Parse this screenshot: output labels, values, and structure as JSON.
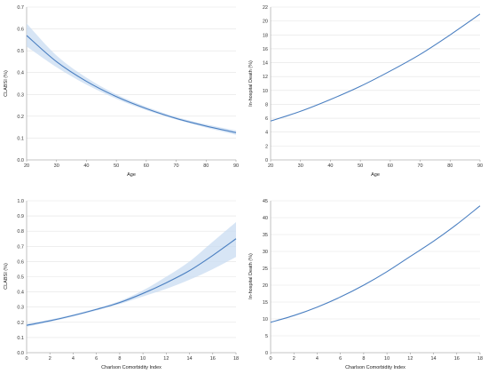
{
  "chart_data": [
    {
      "type": "line",
      "xlabel": "Age",
      "ylabel": "CLABSI (%)",
      "xlim": [
        20,
        90
      ],
      "ylim": [
        0,
        0.7
      ],
      "xticks": [
        "20",
        "30",
        "40",
        "50",
        "60",
        "70",
        "80",
        "90"
      ],
      "yticks": [
        "0.0",
        "0.1",
        "0.2",
        "0.3",
        "0.4",
        "0.5",
        "0.6",
        "0.7"
      ],
      "grid": true,
      "line_color": "#4a7fc1",
      "band_color": "#c9dcf2",
      "x": [
        20,
        30,
        40,
        50,
        60,
        70,
        80,
        90
      ],
      "y": [
        0.57,
        0.45,
        0.36,
        0.29,
        0.235,
        0.19,
        0.155,
        0.125
      ],
      "lower": [
        0.52,
        0.425,
        0.345,
        0.28,
        0.228,
        0.185,
        0.148,
        0.115
      ],
      "upper": [
        0.625,
        0.478,
        0.377,
        0.3,
        0.243,
        0.197,
        0.163,
        0.135
      ]
    },
    {
      "type": "line",
      "xlabel": "Age",
      "ylabel": "In-hospital Death (%)",
      "xlim": [
        20,
        90
      ],
      "ylim": [
        0,
        22
      ],
      "xticks": [
        "20",
        "30",
        "40",
        "50",
        "60",
        "70",
        "80",
        "90"
      ],
      "yticks": [
        "0",
        "2",
        "4",
        "6",
        "8",
        "10",
        "12",
        "14",
        "16",
        "18",
        "20",
        "22"
      ],
      "grid": true,
      "line_color": "#4a7fc1",
      "x": [
        20,
        30,
        40,
        50,
        60,
        70,
        80,
        90
      ],
      "y": [
        5.6,
        7.0,
        8.7,
        10.6,
        12.8,
        15.2,
        18.0,
        21.0
      ]
    },
    {
      "type": "line",
      "xlabel": "Charlson Comorbidity Index",
      "ylabel": "CLABSI (%)",
      "xlim": [
        0,
        18
      ],
      "ylim": [
        0,
        1.0
      ],
      "xticks": [
        "0",
        "2",
        "4",
        "6",
        "8",
        "10",
        "12",
        "14",
        "16",
        "18"
      ],
      "yticks": [
        "0.0",
        "0.1",
        "0.2",
        "0.3",
        "0.4",
        "0.5",
        "0.6",
        "0.7",
        "0.8",
        "0.9",
        "1.0"
      ],
      "grid": true,
      "line_color": "#4a7fc1",
      "band_color": "#c9dcf2",
      "x": [
        0,
        2,
        4,
        6,
        8,
        10,
        12,
        14,
        16,
        18
      ],
      "y": [
        0.18,
        0.21,
        0.245,
        0.285,
        0.33,
        0.39,
        0.46,
        0.54,
        0.64,
        0.75
      ],
      "lower": [
        0.17,
        0.203,
        0.238,
        0.278,
        0.32,
        0.37,
        0.42,
        0.48,
        0.55,
        0.63
      ],
      "upper": [
        0.19,
        0.217,
        0.252,
        0.292,
        0.34,
        0.41,
        0.5,
        0.6,
        0.73,
        0.86
      ]
    },
    {
      "type": "line",
      "xlabel": "Charlson Comorbidity Index",
      "ylabel": "In-hospital Death (%)",
      "xlim": [
        0,
        18
      ],
      "ylim": [
        0,
        45
      ],
      "xticks": [
        "0",
        "2",
        "4",
        "6",
        "8",
        "10",
        "12",
        "14",
        "16",
        "18"
      ],
      "yticks": [
        "0",
        "5",
        "10",
        "15",
        "20",
        "25",
        "30",
        "35",
        "40",
        "45"
      ],
      "grid": true,
      "line_color": "#4a7fc1",
      "x": [
        0,
        2,
        4,
        6,
        8,
        10,
        12,
        14,
        16,
        18
      ],
      "y": [
        9.0,
        11.0,
        13.5,
        16.5,
        20.0,
        24.0,
        28.5,
        33.0,
        38.0,
        43.5
      ]
    }
  ]
}
